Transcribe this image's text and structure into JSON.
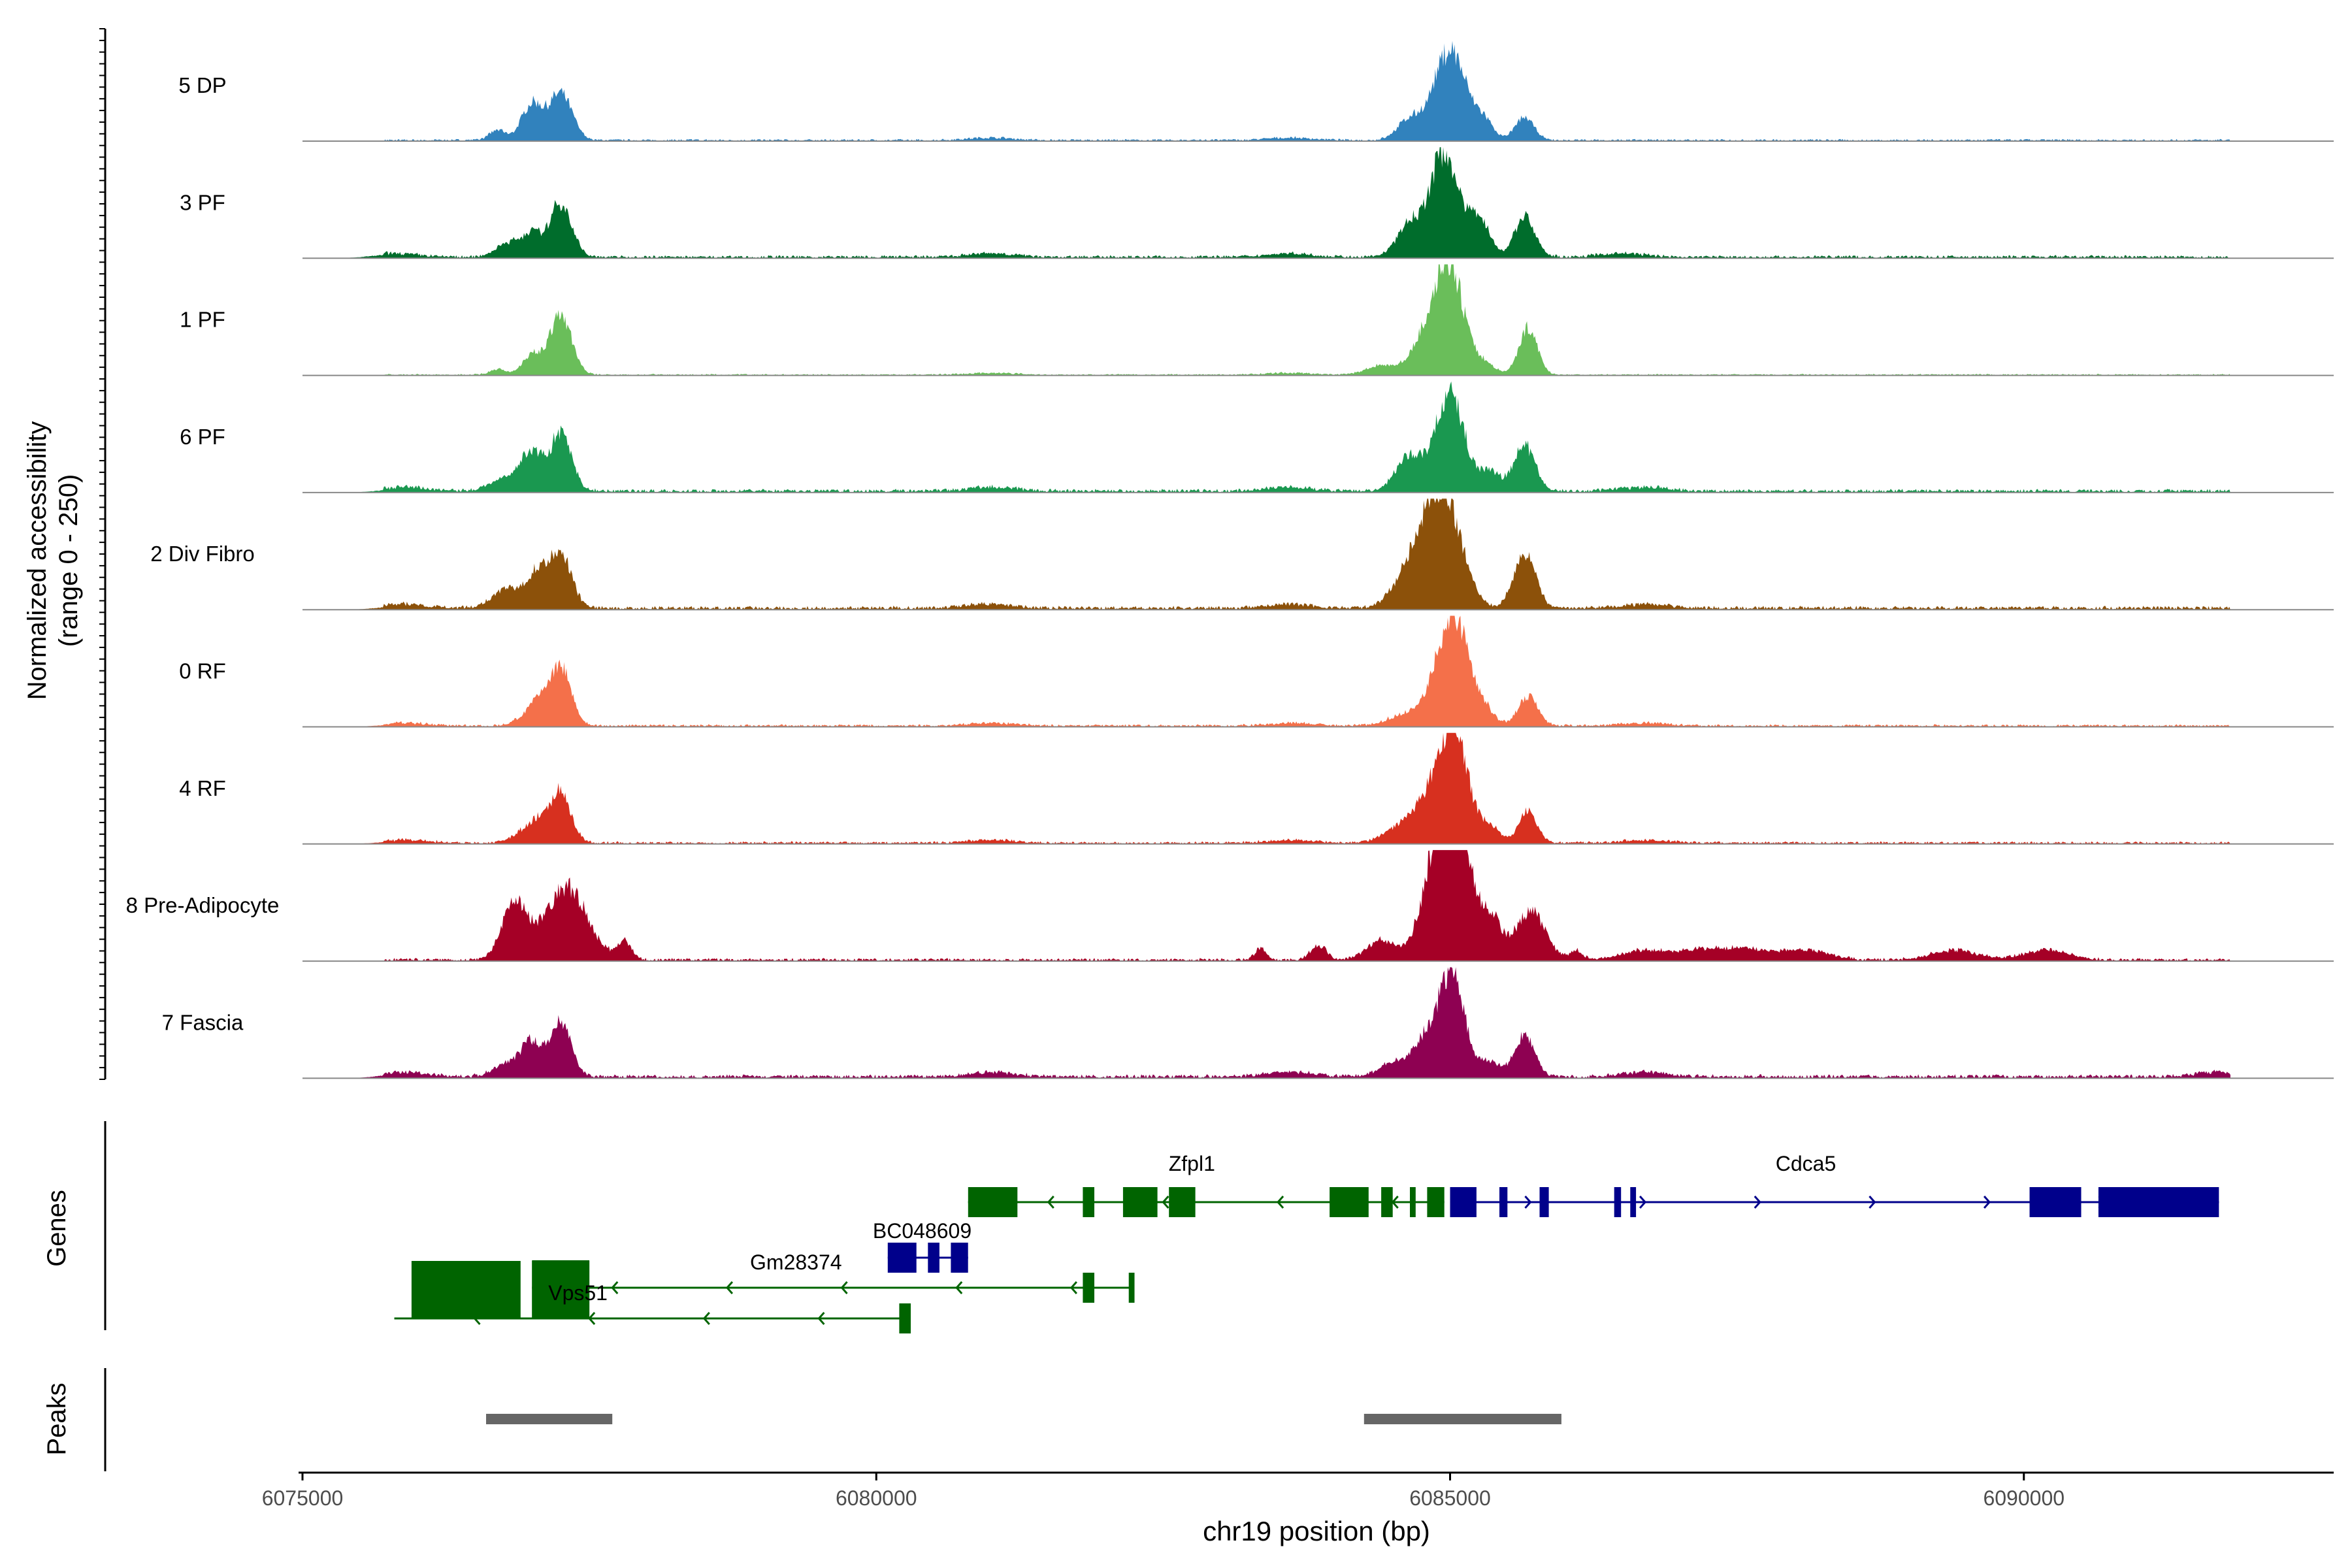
{
  "chart_data": {
    "type": "area",
    "title": "",
    "ylabel_line1": "Normalized accessibility",
    "ylabel_line2": "(range 0 - 250)",
    "xlabel": "chr19 position (bp)",
    "xlim": [
      6075000,
      6092700
    ],
    "ylim": [
      0,
      250
    ],
    "x_ticks": [
      6075000,
      6080000,
      6085000,
      6090000
    ],
    "x_tick_labels": [
      "6075000",
      "6080000",
      "6085000",
      "6090000"
    ],
    "tracks": [
      {
        "name": "5 DP",
        "color": "#3182BD",
        "scale": 0.62,
        "peaks": [
          [
            6076700,
            6,
            70
          ],
          [
            6077000,
            22,
            90
          ],
          [
            6077250,
            28,
            100
          ],
          [
            6084650,
            12,
            110
          ],
          [
            6085000,
            55,
            140
          ],
          [
            6085300,
            10,
            80
          ],
          [
            6085650,
            14,
            80
          ]
        ],
        "noise": 1.2,
        "bumps": [
          [
            6081000,
            1.5
          ],
          [
            6083600,
            1.5
          ]
        ]
      },
      {
        "name": "3 PF",
        "color": "#006D2C",
        "scale": 0.68,
        "peaks": [
          [
            6076800,
            8,
            110
          ],
          [
            6077000,
            12,
            80
          ],
          [
            6077250,
            30,
            95
          ],
          [
            6084650,
            18,
            110
          ],
          [
            6084950,
            58,
            120
          ],
          [
            6085250,
            22,
            90
          ],
          [
            6085650,
            22,
            90
          ]
        ],
        "noise": 1.6,
        "bumps": [
          [
            6075800,
            2
          ],
          [
            6081000,
            2
          ],
          [
            6083600,
            2
          ],
          [
            6086500,
            2
          ]
        ]
      },
      {
        "name": "1 PF",
        "color": "#6ABE5A",
        "scale": 0.7,
        "peaks": [
          [
            6076700,
            3,
            70
          ],
          [
            6077000,
            11,
            80
          ],
          [
            6077250,
            32,
            95
          ],
          [
            6084400,
            5,
            130
          ],
          [
            6084800,
            20,
            130
          ],
          [
            6085000,
            55,
            120
          ],
          [
            6085300,
            6,
            90
          ],
          [
            6085680,
            25,
            80
          ]
        ],
        "noise": 0.8,
        "bumps": [
          [
            6081000,
            1
          ],
          [
            6083600,
            1
          ]
        ]
      },
      {
        "name": "6 PF",
        "color": "#1A9850",
        "scale": 0.72,
        "peaks": [
          [
            6076800,
            8,
            140
          ],
          [
            6077000,
            18,
            85
          ],
          [
            6077250,
            30,
            95
          ],
          [
            6084650,
            18,
            120
          ],
          [
            6085000,
            50,
            125
          ],
          [
            6085350,
            10,
            90
          ],
          [
            6085650,
            24,
            90
          ]
        ],
        "noise": 1.8,
        "bumps": [
          [
            6075900,
            2
          ],
          [
            6081000,
            2
          ],
          [
            6083600,
            2
          ],
          [
            6086700,
            2
          ]
        ]
      },
      {
        "name": "2 Div Fibro",
        "color": "#8C510A",
        "scale": 0.74,
        "peaks": [
          [
            6076800,
            10,
            140
          ],
          [
            6077050,
            16,
            90
          ],
          [
            6077250,
            28,
            95
          ],
          [
            6084700,
            24,
            160
          ],
          [
            6084950,
            55,
            150
          ],
          [
            6085650,
            28,
            95
          ]
        ],
        "noise": 1.8,
        "bumps": [
          [
            6075900,
            2
          ],
          [
            6081000,
            2
          ],
          [
            6083600,
            2
          ],
          [
            6086700,
            2
          ]
        ]
      },
      {
        "name": "0 RF",
        "color": "#F4704A",
        "scale": 0.7,
        "peaks": [
          [
            6076900,
            3,
            90
          ],
          [
            6077050,
            13,
            80
          ],
          [
            6077250,
            32,
            90
          ],
          [
            6084600,
            6,
            140
          ],
          [
            6084900,
            18,
            120
          ],
          [
            6085050,
            52,
            120
          ],
          [
            6085300,
            8,
            90
          ],
          [
            6085680,
            16,
            85
          ]
        ],
        "noise": 1.3,
        "bumps": [
          [
            6075900,
            1.5
          ],
          [
            6081000,
            1.5
          ],
          [
            6083600,
            1.5
          ],
          [
            6086700,
            1.5
          ]
        ]
      },
      {
        "name": "4 RF",
        "color": "#D7301F",
        "scale": 0.72,
        "peaks": [
          [
            6076900,
            4,
            100
          ],
          [
            6077050,
            10,
            90
          ],
          [
            6077250,
            27,
            90
          ],
          [
            6084600,
            9,
            160
          ],
          [
            6084800,
            16,
            110
          ],
          [
            6085030,
            62,
            120
          ],
          [
            6085350,
            8,
            90
          ],
          [
            6085680,
            16,
            80
          ]
        ],
        "noise": 1.3,
        "bumps": [
          [
            6075900,
            1.5
          ],
          [
            6081000,
            1.5
          ],
          [
            6083600,
            1.5
          ],
          [
            6086700,
            1.5
          ]
        ]
      },
      {
        "name": "8 Pre-Adipocyte",
        "color": "#A50026",
        "scale": 0.9,
        "peaks": [
          [
            6076850,
            24,
            110
          ],
          [
            6077300,
            30,
            180
          ],
          [
            6077800,
            8,
            60
          ],
          [
            6083350,
            5,
            50
          ],
          [
            6083850,
            6,
            70
          ],
          [
            6084400,
            8,
            130
          ],
          [
            6084800,
            18,
            110
          ],
          [
            6085020,
            80,
            130
          ],
          [
            6085350,
            18,
            90
          ],
          [
            6085700,
            20,
            130
          ],
          [
            6086100,
            4,
            50
          ]
        ],
        "noise": 1.2,
        "bumps": [
          [
            6086700,
            4
          ],
          [
            6087200,
            4
          ],
          [
            6087600,
            4
          ],
          [
            6088100,
            4
          ],
          [
            6089400,
            4
          ],
          [
            6090200,
            4
          ]
        ]
      },
      {
        "name": "7 Fascia",
        "color": "#8E0152",
        "scale": 0.68,
        "peaks": [
          [
            6076800,
            8,
            120
          ],
          [
            6077000,
            18,
            85
          ],
          [
            6077250,
            30,
            90
          ],
          [
            6084550,
            8,
            160
          ],
          [
            6084800,
            18,
            110
          ],
          [
            6085020,
            55,
            110
          ],
          [
            6085350,
            8,
            90
          ],
          [
            6085650,
            22,
            90
          ]
        ],
        "noise": 2.0,
        "bumps": [
          [
            6075900,
            2.5
          ],
          [
            6081000,
            2.5
          ],
          [
            6083600,
            2.5
          ],
          [
            6086700,
            2.5
          ],
          [
            6091700,
            2.5
          ]
        ]
      }
    ],
    "genes_label": "Genes",
    "genes": [
      {
        "name": "Cdca5",
        "color": "#00008B",
        "strand": "+",
        "start": 6085000,
        "end": 6091700,
        "row": 0,
        "label_pos": 6088100,
        "exons": [
          [
            6085000,
            6085230
          ],
          [
            6085430,
            6085500
          ],
          [
            6085780,
            6085860
          ],
          [
            6086430,
            6086490
          ],
          [
            6086570,
            6086620
          ],
          [
            6090050,
            6090500
          ],
          [
            6090650,
            6091700
          ]
        ]
      },
      {
        "name": "Zfpl1",
        "color": "#006400",
        "strand": "-",
        "start": 6080800,
        "end": 6084950,
        "row": 0,
        "label_pos": 6082750,
        "exons": [
          [
            6080800,
            6081230
          ],
          [
            6081800,
            6081900
          ],
          [
            6082150,
            6082450
          ],
          [
            6082550,
            6082780
          ],
          [
            6083950,
            6084290
          ],
          [
            6084400,
            6084500
          ],
          [
            6084650,
            6084700
          ],
          [
            6084800,
            6084950
          ]
        ]
      },
      {
        "name": "BC048609",
        "color": "#00008B",
        "strand": "-",
        "start": 6080100,
        "end": 6080800,
        "row": 1,
        "label_pos": 6080400,
        "exons": [
          [
            6080100,
            6080350
          ],
          [
            6080450,
            6080550
          ],
          [
            6080650,
            6080800
          ]
        ]
      },
      {
        "name": "Gm28374",
        "color": "#006400",
        "strand": "-",
        "start": 6077000,
        "end": 6082250,
        "row": 2,
        "label_pos": 6079300,
        "exons": [
          [
            6077000,
            6077500
          ],
          [
            6081800,
            6081900
          ],
          [
            6082200,
            6082250
          ]
        ]
      },
      {
        "name": "Vps51",
        "color": "#006400",
        "strand": "-",
        "start": 6075800,
        "end": 6080300,
        "row": 3,
        "label_pos": 6077400,
        "exons": [
          [
            6075950,
            6076900
          ],
          [
            6077000,
            6077500
          ],
          [
            6080200,
            6080300
          ]
        ]
      }
    ],
    "peaks_label": "Peaks",
    "peak_regions": [
      [
        6076600,
        6077700
      ],
      [
        6084250,
        6085970
      ]
    ]
  }
}
